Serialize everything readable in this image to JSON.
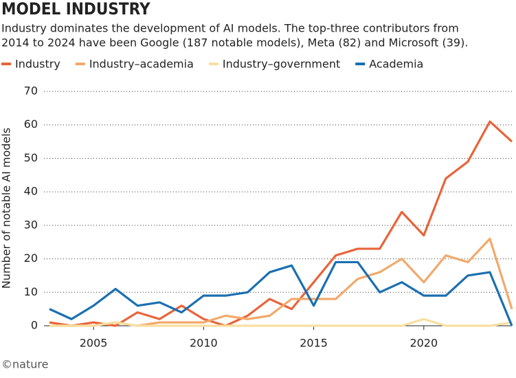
{
  "chart_data": {
    "type": "line",
    "title": "MODEL INDUSTRY",
    "subtitle": [
      "Industry dominates the development of AI models. The top-three contributors from",
      "2014 to 2024 have been Google (187 notable models), Meta (82) and Microsoft (39)."
    ],
    "ylabel": "Number of notable AI models",
    "source": "©nature",
    "x": [
      2003,
      2004,
      2005,
      2006,
      2007,
      2008,
      2009,
      2010,
      2011,
      2012,
      2013,
      2014,
      2015,
      2016,
      2017,
      2018,
      2019,
      2020,
      2021,
      2022,
      2023,
      2024
    ],
    "series": [
      {
        "name": "Industry",
        "color": "#e8643a",
        "values": [
          1,
          0,
          1,
          0,
          4,
          2,
          6,
          2,
          0,
          3,
          8,
          5,
          13,
          21,
          23,
          23,
          34,
          27,
          44,
          49,
          61,
          55
        ]
      },
      {
        "name": "Industry–academia",
        "color": "#f2a96a",
        "values": [
          0,
          0,
          0,
          1,
          0,
          1,
          1,
          1,
          3,
          2,
          3,
          8,
          8,
          8,
          14,
          16,
          20,
          13,
          21,
          19,
          26,
          5
        ]
      },
      {
        "name": "Industry–government",
        "color": "#f7dfa0",
        "values": [
          0,
          0,
          0,
          1,
          0,
          0,
          0,
          0,
          0,
          0,
          0,
          0,
          0,
          0,
          0,
          0,
          0,
          2,
          0,
          0,
          0,
          1
        ]
      },
      {
        "name": "Academia",
        "color": "#1a6fb0",
        "values": [
          5,
          2,
          6,
          11,
          6,
          7,
          4,
          9,
          9,
          10,
          16,
          18,
          6,
          19,
          19,
          10,
          13,
          9,
          9,
          15,
          16,
          0
        ]
      }
    ],
    "xlim": [
      2003,
      2024
    ],
    "xticks": [
      2005,
      2010,
      2015,
      2020
    ],
    "ylim": [
      0,
      70
    ],
    "yticks": [
      0,
      10,
      20,
      30,
      40,
      50,
      60,
      70
    ],
    "grid": true,
    "legend": "top"
  }
}
